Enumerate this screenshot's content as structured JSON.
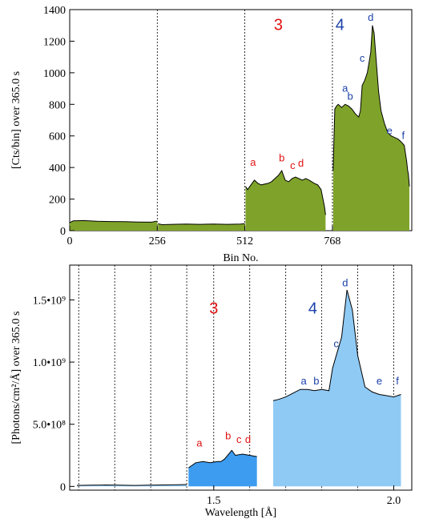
{
  "colors": {
    "green_fill": "#7fa32a",
    "blue_fill": "#8fcaf5",
    "blue_fill_dark": "#3d9cf0",
    "red_label": "#e01010",
    "blue_label": "#1a3fa8",
    "line": "#000000"
  },
  "chart_data": [
    {
      "type": "area",
      "ylabel": "[Cts/bin] over  365.0 s",
      "xlabel": "Bin No.",
      "xlim": [
        0,
        1000
      ],
      "ylim": [
        0,
        1400
      ],
      "xticks": [
        0,
        256,
        512,
        768
      ],
      "yticks": [
        0,
        200,
        400,
        600,
        800,
        1000,
        1200,
        1400
      ],
      "dividers_x": [
        256,
        512,
        768
      ],
      "region_labels": [
        {
          "text": "3",
          "x": 610,
          "y": 1270,
          "color": "red"
        },
        {
          "text": "4",
          "x": 790,
          "y": 1270,
          "color": "blue"
        }
      ],
      "peak_labels": [
        {
          "text": "a",
          "x": 536,
          "y": 410,
          "color": "red"
        },
        {
          "text": "b",
          "x": 620,
          "y": 440,
          "color": "red"
        },
        {
          "text": "c",
          "x": 652,
          "y": 390,
          "color": "red"
        },
        {
          "text": "d",
          "x": 676,
          "y": 405,
          "color": "red"
        },
        {
          "text": "a",
          "x": 805,
          "y": 880,
          "color": "blue"
        },
        {
          "text": "b",
          "x": 820,
          "y": 830,
          "color": "blue"
        },
        {
          "text": "c",
          "x": 855,
          "y": 1070,
          "color": "blue"
        },
        {
          "text": "d",
          "x": 880,
          "y": 1330,
          "color": "blue"
        },
        {
          "text": "e",
          "x": 935,
          "y": 610,
          "color": "blue"
        },
        {
          "text": "f",
          "x": 975,
          "y": 580,
          "color": "blue"
        }
      ],
      "segments": [
        {
          "color": "green",
          "points": [
            [
              0,
              50
            ],
            [
              10,
              62
            ],
            [
              40,
              64
            ],
            [
              80,
              60
            ],
            [
              120,
              58
            ],
            [
              160,
              57
            ],
            [
              200,
              55
            ],
            [
              240,
              54
            ],
            [
              252,
              60
            ],
            [
              256,
              60
            ]
          ]
        },
        {
          "color": "green",
          "points": [
            [
              258,
              44
            ],
            [
              270,
              38
            ],
            [
              300,
              40
            ],
            [
              340,
              42
            ],
            [
              380,
              40
            ],
            [
              420,
              42
            ],
            [
              460,
              40
            ],
            [
              500,
              42
            ],
            [
              510,
              44
            ],
            [
              512,
              44
            ]
          ]
        },
        {
          "color": "green",
          "points": [
            [
              514,
              280
            ],
            [
              520,
              260
            ],
            [
              530,
              290
            ],
            [
              540,
              320
            ],
            [
              550,
              300
            ],
            [
              560,
              290
            ],
            [
              580,
              300
            ],
            [
              590,
              310
            ],
            [
              600,
              330
            ],
            [
              610,
              350
            ],
            [
              620,
              380
            ],
            [
              630,
              320
            ],
            [
              640,
              310
            ],
            [
              650,
              330
            ],
            [
              660,
              340
            ],
            [
              670,
              330
            ],
            [
              680,
              320
            ],
            [
              690,
              330
            ],
            [
              700,
              320
            ],
            [
              715,
              300
            ],
            [
              725,
              290
            ],
            [
              735,
              260
            ],
            [
              745,
              150
            ],
            [
              748,
              100
            ]
          ]
        },
        {
          "color": "green",
          "points": [
            [
              770,
              380
            ],
            [
              775,
              770
            ],
            [
              780,
              790
            ],
            [
              785,
              800
            ],
            [
              795,
              780
            ],
            [
              805,
              800
            ],
            [
              815,
              790
            ],
            [
              825,
              770
            ],
            [
              835,
              740
            ],
            [
              845,
              720
            ],
            [
              850,
              760
            ],
            [
              855,
              920
            ],
            [
              862,
              950
            ],
            [
              870,
              1000
            ],
            [
              880,
              1130
            ],
            [
              885,
              1300
            ],
            [
              890,
              1250
            ],
            [
              897,
              1050
            ],
            [
              903,
              880
            ],
            [
              910,
              760
            ],
            [
              920,
              680
            ],
            [
              930,
              620
            ],
            [
              940,
              600
            ],
            [
              950,
              590
            ],
            [
              960,
              580
            ],
            [
              970,
              560
            ],
            [
              978,
              540
            ],
            [
              985,
              440
            ],
            [
              988,
              380
            ],
            [
              990,
              360
            ],
            [
              993,
              280
            ]
          ]
        }
      ]
    },
    {
      "type": "area",
      "ylabel": "[Photons/cm²/Å] over  365.0 s",
      "xlabel": "Wavelength [Å]",
      "xlim": [
        1.1,
        2.05
      ],
      "ylim": [
        -30000000,
        1780000000
      ],
      "xticks": [
        1.5,
        2.0
      ],
      "xtick_labels": [
        "1.5",
        "2.0"
      ],
      "yticks": [
        0,
        500000000,
        1000000000,
        1500000000
      ],
      "ytick_labels": [
        "0",
        "5.0•10⁸",
        "1.0•10⁹",
        "1.5•10⁹"
      ],
      "dividers_x": [
        1.125,
        1.225,
        1.325,
        1.425,
        1.5,
        1.6,
        1.7,
        1.8,
        1.9,
        2.0
      ],
      "region_labels": [
        {
          "text": "3",
          "x": 1.5,
          "y": 1390000000,
          "color": "red"
        },
        {
          "text": "4",
          "x": 1.775,
          "y": 1390000000,
          "color": "blue"
        }
      ],
      "peak_labels": [
        {
          "text": "a",
          "x": 1.46,
          "y": 320000000,
          "color": "red"
        },
        {
          "text": "b",
          "x": 1.54,
          "y": 380000000,
          "color": "red"
        },
        {
          "text": "c",
          "x": 1.57,
          "y": 350000000,
          "color": "red"
        },
        {
          "text": "d",
          "x": 1.595,
          "y": 350000000,
          "color": "red"
        },
        {
          "text": "a",
          "x": 1.75,
          "y": 820000000,
          "color": "blue"
        },
        {
          "text": "b",
          "x": 1.785,
          "y": 820000000,
          "color": "blue"
        },
        {
          "text": "c",
          "x": 1.84,
          "y": 1120000000,
          "color": "blue"
        },
        {
          "text": "d",
          "x": 1.865,
          "y": 1610000000,
          "color": "blue"
        },
        {
          "text": "e",
          "x": 1.96,
          "y": 820000000,
          "color": "blue"
        },
        {
          "text": "f",
          "x": 2.01,
          "y": 820000000,
          "color": "blue"
        }
      ],
      "segments": [
        {
          "color": "blue",
          "points": [
            [
              1.12,
              8000000
            ],
            [
              1.16,
              10000000
            ],
            [
              1.2,
              12000000
            ],
            [
              1.24,
              10000000
            ],
            [
              1.28,
              8000000
            ],
            [
              1.32,
              10000000
            ],
            [
              1.36,
              12000000
            ],
            [
              1.4,
              13000000
            ],
            [
              1.425,
              15000000
            ]
          ]
        },
        {
          "color": "bluedark",
          "points": [
            [
              1.43,
              150000000
            ],
            [
              1.45,
              190000000
            ],
            [
              1.47,
              200000000
            ],
            [
              1.49,
              190000000
            ],
            [
              1.51,
              200000000
            ],
            [
              1.52,
              200000000
            ],
            [
              1.53,
              220000000
            ],
            [
              1.55,
              290000000
            ],
            [
              1.56,
              250000000
            ],
            [
              1.58,
              260000000
            ],
            [
              1.6,
              250000000
            ],
            [
              1.62,
              240000000
            ]
          ]
        },
        {
          "color": "blue",
          "points": [
            [
              1.665,
              690000000
            ],
            [
              1.68,
              700000000
            ],
            [
              1.7,
              720000000
            ],
            [
              1.72,
              750000000
            ],
            [
              1.74,
              780000000
            ],
            [
              1.76,
              780000000
            ],
            [
              1.78,
              770000000
            ],
            [
              1.8,
              780000000
            ],
            [
              1.82,
              770000000
            ],
            [
              1.83,
              950000000
            ],
            [
              1.84,
              1050000000
            ],
            [
              1.855,
              1200000000
            ],
            [
              1.87,
              1580000000
            ],
            [
              1.885,
              1420000000
            ],
            [
              1.9,
              1050000000
            ],
            [
              1.92,
              800000000
            ],
            [
              1.94,
              760000000
            ],
            [
              1.96,
              740000000
            ],
            [
              1.98,
              730000000
            ],
            [
              2.0,
              720000000
            ],
            [
              2.02,
              740000000
            ]
          ]
        }
      ]
    }
  ]
}
